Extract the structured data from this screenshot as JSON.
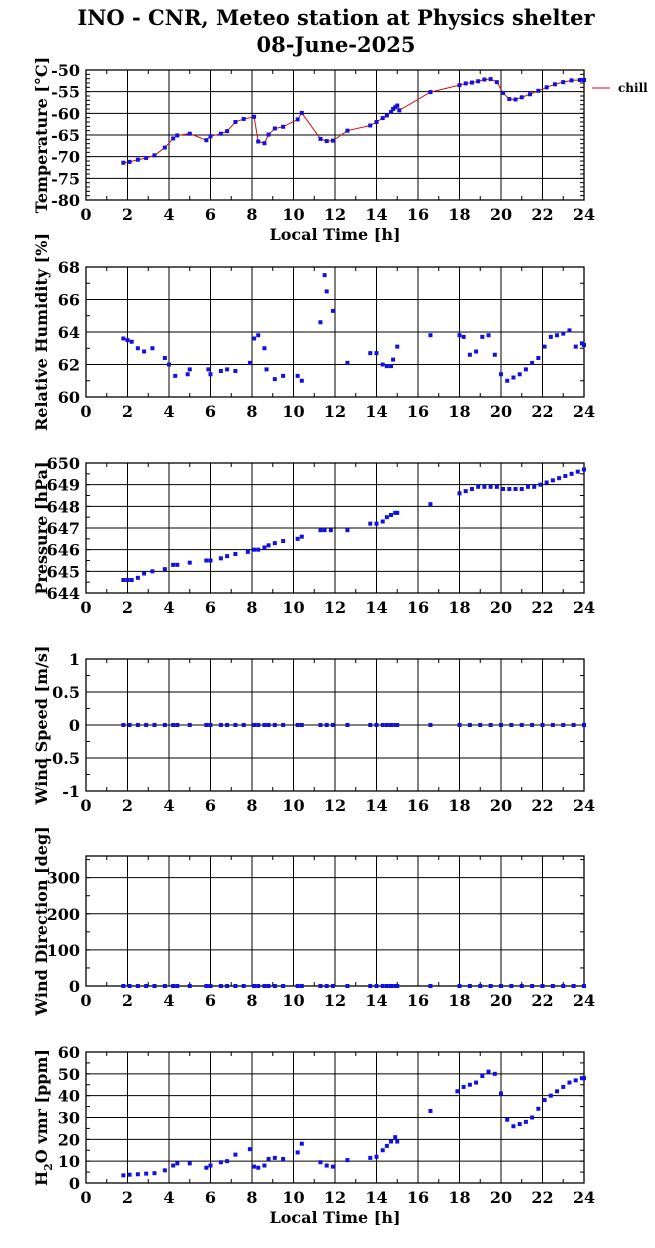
{
  "header": {
    "title": "INO - CNR, Meteo station at Physics shelter",
    "date": "08-June-2025"
  },
  "colors": {
    "points": "#1010e0",
    "line": "#d01010",
    "grid": "#000000"
  },
  "chart_data": [
    {
      "type": "scatter",
      "id": "temperature",
      "ylabel": "Temperature [°C]",
      "xlabel": "Local Time [h]",
      "xlim": [
        0,
        24
      ],
      "ylim": [
        -80,
        -50
      ],
      "xticks": [
        0,
        2,
        4,
        6,
        8,
        10,
        12,
        14,
        16,
        18,
        20,
        22,
        24
      ],
      "yticks": [
        -80,
        -75,
        -70,
        -65,
        -60,
        -55,
        -50
      ],
      "line": true,
      "legend": {
        "position": "right",
        "entries": [
          "chill"
        ]
      },
      "x": [
        1.8,
        2.1,
        2.5,
        2.9,
        3.3,
        3.8,
        4.2,
        4.4,
        5.0,
        5.8,
        6.0,
        6.5,
        6.8,
        7.2,
        7.6,
        8.1,
        8.3,
        8.6,
        8.8,
        9.1,
        9.5,
        10.2,
        10.4,
        11.3,
        11.6,
        11.9,
        12.6,
        13.7,
        14.0,
        14.3,
        14.5,
        14.7,
        14.8,
        14.9,
        15.0,
        15.1,
        16.6,
        18.0,
        18.3,
        18.6,
        18.9,
        19.2,
        19.5,
        19.8,
        20.1,
        20.4,
        20.7,
        21.0,
        21.4,
        21.8,
        22.2,
        22.6,
        23.0,
        23.4,
        23.8,
        24.0
      ],
      "y": [
        -71.4,
        -71.2,
        -70.7,
        -70.3,
        -69.7,
        -67.9,
        -65.8,
        -65.1,
        -64.7,
        -66.2,
        -65.3,
        -64.7,
        -64.1,
        -62.0,
        -61.3,
        -60.8,
        -66.5,
        -66.9,
        -64.9,
        -63.5,
        -63.1,
        -61.4,
        -59.9,
        -65.9,
        -66.4,
        -66.3,
        -64.0,
        -62.8,
        -62.0,
        -61.1,
        -60.5,
        -59.7,
        -59.0,
        -58.6,
        -58.2,
        -59.3,
        -55.1,
        -53.5,
        -53.1,
        -52.9,
        -52.6,
        -52.2,
        -52.1,
        -52.8,
        -55.3,
        -56.7,
        -56.8,
        -56.3,
        -55.6,
        -54.8,
        -54.0,
        -53.3,
        -52.8,
        -52.4,
        -52.3,
        -52.3
      ]
    },
    {
      "type": "scatter",
      "id": "humidity",
      "ylabel": "Relative Humidity [%]",
      "xlabel": "",
      "xlim": [
        0,
        24
      ],
      "ylim": [
        60,
        68
      ],
      "xticks": [
        0,
        2,
        4,
        6,
        8,
        10,
        12,
        14,
        16,
        18,
        20,
        22,
        24
      ],
      "yticks": [
        60,
        62,
        64,
        66,
        68
      ],
      "x": [
        1.8,
        2.0,
        2.2,
        2.5,
        2.8,
        3.2,
        3.8,
        4.0,
        4.3,
        4.9,
        5.0,
        5.9,
        6.0,
        6.5,
        6.8,
        7.2,
        7.9,
        8.1,
        8.3,
        8.6,
        8.7,
        9.1,
        9.5,
        10.2,
        10.4,
        11.3,
        11.5,
        11.6,
        11.9,
        12.6,
        13.7,
        14.0,
        14.3,
        14.5,
        14.7,
        14.8,
        15.0,
        16.6,
        18.0,
        18.2,
        18.5,
        18.8,
        19.1,
        19.4,
        19.7,
        20.0,
        20.3,
        20.6,
        20.9,
        21.2,
        21.5,
        21.8,
        22.1,
        22.4,
        22.7,
        23.0,
        23.3,
        23.6,
        23.9,
        24.0
      ],
      "y": [
        63.6,
        63.5,
        63.4,
        63.0,
        62.8,
        63.0,
        62.4,
        62.0,
        61.3,
        61.4,
        61.7,
        61.7,
        61.4,
        61.6,
        61.7,
        61.6,
        62.1,
        63.6,
        63.8,
        63.0,
        61.7,
        61.1,
        61.3,
        61.3,
        61.0,
        64.6,
        67.5,
        66.5,
        65.3,
        62.1,
        62.7,
        62.7,
        62.0,
        61.9,
        61.9,
        62.3,
        63.1,
        63.8,
        63.8,
        63.7,
        62.6,
        62.8,
        63.7,
        63.8,
        62.6,
        61.4,
        61.0,
        61.2,
        61.4,
        61.7,
        62.1,
        62.4,
        63.1,
        63.7,
        63.8,
        63.9,
        64.1,
        63.1,
        63.3,
        63.2
      ]
    },
    {
      "type": "scatter",
      "id": "pressure",
      "ylabel": "Pressure [hPa]",
      "xlabel": "",
      "xlim": [
        0,
        24
      ],
      "ylim": [
        644,
        650
      ],
      "xticks": [
        0,
        2,
        4,
        6,
        8,
        10,
        12,
        14,
        16,
        18,
        20,
        22,
        24
      ],
      "yticks": [
        644,
        645,
        646,
        647,
        648,
        649,
        650
      ],
      "x": [
        1.8,
        2.0,
        2.2,
        2.5,
        2.8,
        3.2,
        3.8,
        4.2,
        4.4,
        5.0,
        5.8,
        6.0,
        6.5,
        6.8,
        7.2,
        7.8,
        8.1,
        8.3,
        8.6,
        8.8,
        9.1,
        9.5,
        10.2,
        10.4,
        11.3,
        11.5,
        11.8,
        12.6,
        13.7,
        14.0,
        14.3,
        14.5,
        14.7,
        14.9,
        15.0,
        16.6,
        18.0,
        18.3,
        18.6,
        18.9,
        19.2,
        19.5,
        19.8,
        20.1,
        20.4,
        20.7,
        21.0,
        21.3,
        21.6,
        21.9,
        22.2,
        22.5,
        22.8,
        23.1,
        23.4,
        23.7,
        24.0
      ],
      "y": [
        644.6,
        644.6,
        644.6,
        644.7,
        644.9,
        645.0,
        645.1,
        645.3,
        645.3,
        645.4,
        645.5,
        645.5,
        645.6,
        645.7,
        645.8,
        645.9,
        646.0,
        646.0,
        646.1,
        646.2,
        646.3,
        646.4,
        646.5,
        646.6,
        646.9,
        646.9,
        646.9,
        646.9,
        647.2,
        647.2,
        647.3,
        647.5,
        647.6,
        647.7,
        647.7,
        648.1,
        648.6,
        648.7,
        648.8,
        648.9,
        648.9,
        648.9,
        648.9,
        648.8,
        648.8,
        648.8,
        648.8,
        648.9,
        648.9,
        649.0,
        649.1,
        649.2,
        649.3,
        649.4,
        649.5,
        649.6,
        649.7
      ]
    },
    {
      "type": "scatter",
      "id": "wind_speed",
      "ylabel": "Wind Speed [m/s]",
      "xlabel": "",
      "xlim": [
        0,
        24
      ],
      "ylim": [
        -1,
        1
      ],
      "xticks": [
        0,
        2,
        4,
        6,
        8,
        10,
        12,
        14,
        16,
        18,
        20,
        22,
        24
      ],
      "yticks": [
        -1,
        -0.5,
        0,
        0.5,
        1
      ],
      "x": [
        1.8,
        2.1,
        2.5,
        2.9,
        3.3,
        3.8,
        4.2,
        4.4,
        5.0,
        5.8,
        6.0,
        6.5,
        6.8,
        7.2,
        7.6,
        8.1,
        8.3,
        8.6,
        8.8,
        9.1,
        9.5,
        10.2,
        10.4,
        11.3,
        11.6,
        11.9,
        12.6,
        13.7,
        14.0,
        14.3,
        14.5,
        14.7,
        14.9,
        15.0,
        16.6,
        18.0,
        18.5,
        19.0,
        19.5,
        20.0,
        20.5,
        21.0,
        21.5,
        22.0,
        22.5,
        23.0,
        23.5,
        24.0
      ],
      "y": [
        0,
        0,
        0,
        0,
        0,
        0,
        0,
        0,
        0,
        0,
        0,
        0,
        0,
        0,
        0,
        0,
        0,
        0,
        0,
        0,
        0,
        0,
        0,
        0,
        0,
        0,
        0,
        0,
        0,
        0,
        0,
        0,
        0,
        0,
        0,
        0,
        0,
        0,
        0,
        0,
        0,
        0,
        0,
        0,
        0,
        0,
        0,
        0
      ]
    },
    {
      "type": "scatter",
      "id": "wind_direction",
      "ylabel": "Wind Direction [deg]",
      "xlabel": "",
      "xlim": [
        0,
        24
      ],
      "ylim": [
        0,
        360
      ],
      "xticks": [
        0,
        2,
        4,
        6,
        8,
        10,
        12,
        14,
        16,
        18,
        20,
        22,
        24
      ],
      "yticks": [
        0,
        100,
        200,
        300
      ],
      "x": [
        1.8,
        2.1,
        2.5,
        2.9,
        3.3,
        3.8,
        4.2,
        4.4,
        5.0,
        5.8,
        6.0,
        6.5,
        6.8,
        7.2,
        7.6,
        8.1,
        8.3,
        8.6,
        8.8,
        9.1,
        9.5,
        10.2,
        10.4,
        11.3,
        11.6,
        11.9,
        12.6,
        13.7,
        14.0,
        14.3,
        14.5,
        14.7,
        14.9,
        15.0,
        16.6,
        18.0,
        18.5,
        19.0,
        19.5,
        20.0,
        20.5,
        21.0,
        21.5,
        22.0,
        22.5,
        23.0,
        23.5,
        24.0
      ],
      "y": [
        0,
        0,
        0,
        0,
        0,
        0,
        0,
        0,
        0,
        0,
        0,
        0,
        0,
        0,
        0,
        0,
        0,
        0,
        0,
        0,
        0,
        0,
        0,
        0,
        0,
        0,
        0,
        0,
        0,
        0,
        0,
        0,
        0,
        0,
        0,
        0,
        0,
        0,
        0,
        0,
        0,
        0,
        0,
        0,
        0,
        0,
        0,
        0
      ]
    },
    {
      "type": "scatter",
      "id": "h2o_vmr",
      "ylabel": "H2O vmr [ppm]",
      "xlabel": "Local Time [h]",
      "xlim": [
        0,
        24
      ],
      "ylim": [
        0,
        60
      ],
      "xticks": [
        0,
        2,
        4,
        6,
        8,
        10,
        12,
        14,
        16,
        18,
        20,
        22,
        24
      ],
      "yticks": [
        0,
        10,
        20,
        30,
        40,
        50,
        60
      ],
      "x": [
        1.8,
        2.1,
        2.5,
        2.9,
        3.3,
        3.8,
        4.2,
        4.4,
        5.0,
        5.8,
        6.0,
        6.5,
        6.8,
        7.2,
        7.9,
        8.1,
        8.3,
        8.6,
        8.8,
        9.1,
        9.5,
        10.2,
        10.4,
        11.3,
        11.6,
        11.9,
        12.6,
        13.7,
        14.0,
        14.3,
        14.5,
        14.7,
        14.9,
        15.0,
        16.6,
        17.9,
        18.2,
        18.5,
        18.8,
        19.1,
        19.4,
        19.7,
        20.0,
        20.3,
        20.6,
        20.9,
        21.2,
        21.5,
        21.8,
        22.1,
        22.4,
        22.7,
        23.0,
        23.3,
        23.6,
        23.9,
        24.0
      ],
      "y": [
        3.5,
        3.8,
        4.0,
        4.3,
        4.5,
        5.8,
        8.0,
        9.0,
        9.0,
        7.0,
        8.0,
        9.5,
        10.0,
        13.0,
        15.5,
        7.5,
        7.0,
        8.0,
        11.0,
        11.5,
        11.0,
        14.0,
        18.0,
        9.5,
        8.0,
        7.5,
        10.5,
        11.5,
        12.0,
        15.0,
        17.0,
        19.0,
        21.0,
        19.0,
        33.0,
        42.0,
        44.0,
        45.0,
        46.0,
        49.0,
        51.0,
        50.0,
        41.0,
        29.0,
        26.0,
        27.0,
        28.0,
        30.0,
        34.0,
        38.0,
        40.0,
        42.0,
        44.0,
        46.0,
        47.0,
        48.0,
        48.0
      ]
    }
  ]
}
